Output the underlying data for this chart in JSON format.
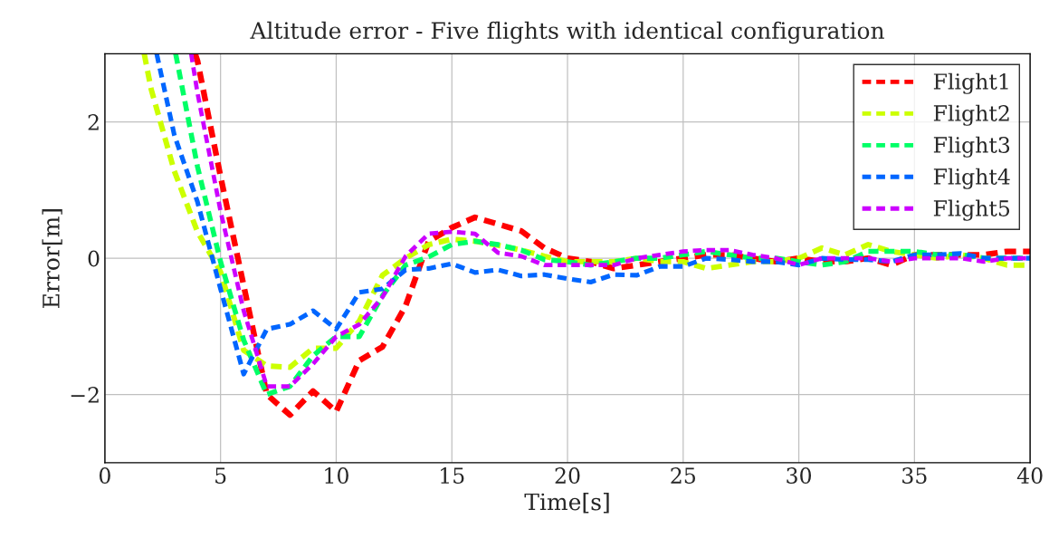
{
  "chart_data": {
    "type": "line",
    "title": "Altitude error - Five flights with identical configuration",
    "xlabel": "Time[s]",
    "ylabel": "Error[m]",
    "xlim": [
      0,
      40
    ],
    "ylim": [
      -3,
      3
    ],
    "xticks": [
      0,
      5,
      10,
      15,
      20,
      25,
      30,
      35,
      40
    ],
    "yticks": [
      {
        "value": -2,
        "label": "−2"
      },
      0,
      2
    ],
    "grid": true,
    "legend": "top right",
    "line_style": "dashed",
    "series": [
      {
        "name": "Flight1",
        "color": "#ff0000",
        "x": [
          3.9,
          4,
          5,
          6,
          7,
          8,
          9,
          10,
          11,
          12,
          13,
          14,
          15,
          16,
          17,
          18,
          19,
          20,
          21,
          22,
          23,
          24,
          25,
          26,
          27,
          28,
          29,
          30,
          31,
          32,
          33,
          34,
          35,
          36,
          37,
          38,
          39,
          40
        ],
        "values": [
          3,
          2.9,
          1.2,
          -0.4,
          -2.0,
          -2.3,
          -1.95,
          -2.25,
          -1.5,
          -1.3,
          -0.7,
          0.25,
          0.45,
          0.6,
          0.5,
          0.4,
          0.15,
          0.0,
          -0.05,
          -0.15,
          -0.1,
          -0.05,
          0.0,
          0.05,
          0.05,
          0.0,
          -0.05,
          0.0,
          -0.05,
          -0.05,
          0.0,
          -0.1,
          0.05,
          0.05,
          0.05,
          0.05,
          0.1,
          0.1
        ]
      },
      {
        "name": "Flight2",
        "color": "#ccff00",
        "x": [
          1.7,
          2,
          3,
          4,
          5,
          6,
          7,
          8,
          9,
          10,
          11,
          12,
          13,
          14,
          15,
          16,
          17,
          18,
          19,
          20,
          21,
          22,
          23,
          24,
          25,
          26,
          27,
          28,
          29,
          30,
          31,
          32,
          33,
          34,
          35,
          36,
          37,
          38,
          39,
          40
        ],
        "values": [
          3,
          2.48,
          1.28,
          0.39,
          -0.2,
          -1.35,
          -1.58,
          -1.6,
          -1.32,
          -1.32,
          -0.92,
          -0.25,
          0.0,
          0.2,
          0.28,
          0.25,
          0.19,
          0.12,
          0.03,
          -0.05,
          -0.05,
          -0.05,
          0.0,
          -0.05,
          -0.05,
          -0.15,
          -0.1,
          -0.05,
          -0.05,
          0.0,
          0.15,
          0.05,
          0.2,
          0.1,
          0.05,
          0.0,
          0.05,
          0.0,
          -0.1,
          -0.1
        ]
      },
      {
        "name": "Flight3",
        "color": "#00ff66",
        "x": [
          3.06,
          4,
          5,
          6,
          7,
          8,
          9,
          10,
          11,
          12,
          13,
          14,
          15,
          16,
          17,
          18,
          19,
          20,
          21,
          22,
          23,
          24,
          25,
          26,
          27,
          28,
          29,
          30,
          31,
          32,
          33,
          34,
          35,
          36,
          37,
          38,
          39,
          40
        ],
        "values": [
          3,
          1.35,
          -0.05,
          -1.2,
          -2.0,
          -1.88,
          -1.43,
          -1.15,
          -1.15,
          -0.55,
          -0.1,
          0.02,
          0.2,
          0.25,
          0.2,
          0.12,
          -0.02,
          -0.05,
          -0.1,
          -0.05,
          0.0,
          0.0,
          0.05,
          0.1,
          0.05,
          0.0,
          0.0,
          -0.05,
          -0.1,
          -0.05,
          0.1,
          0.1,
          0.1,
          0.05,
          0.05,
          0.0,
          0.0,
          0.0
        ]
      },
      {
        "name": "Flight4",
        "color": "#0066ff",
        "x": [
          2.24,
          3,
          4,
          5,
          6,
          7,
          8,
          9,
          10,
          11,
          12,
          13,
          14,
          15,
          16,
          17,
          18,
          19,
          20,
          21,
          22,
          23,
          24,
          25,
          26,
          27,
          28,
          29,
          30,
          31,
          32,
          33,
          34,
          35,
          36,
          37,
          38,
          39,
          40
        ],
        "values": [
          3,
          1.81,
          0.83,
          -0.45,
          -1.7,
          -1.04,
          -0.97,
          -0.77,
          -1.04,
          -0.5,
          -0.45,
          -0.17,
          -0.15,
          -0.08,
          -0.21,
          -0.17,
          -0.26,
          -0.24,
          -0.3,
          -0.35,
          -0.24,
          -0.25,
          -0.12,
          -0.12,
          0.0,
          -0.02,
          -0.05,
          -0.05,
          -0.1,
          0.0,
          -0.02,
          -0.02,
          -0.05,
          0.05,
          0.05,
          0.07,
          0.0,
          0.0,
          0.0
        ]
      },
      {
        "name": "Flight5",
        "color": "#cc00ff",
        "x": [
          3.73,
          4,
          5,
          6,
          7,
          8,
          9,
          10,
          11,
          12,
          13,
          14,
          15,
          16,
          17,
          18,
          19,
          20,
          21,
          22,
          23,
          24,
          25,
          26,
          27,
          28,
          29,
          30,
          31,
          32,
          33,
          34,
          35,
          36,
          37,
          38,
          39,
          40
        ],
        "values": [
          3,
          2.43,
          0.69,
          -0.77,
          -1.88,
          -1.88,
          -1.55,
          -1.15,
          -0.97,
          -0.57,
          0.03,
          0.36,
          0.39,
          0.36,
          0.08,
          0.03,
          -0.1,
          -0.1,
          -0.1,
          -0.1,
          0.0,
          0.05,
          0.1,
          0.12,
          0.12,
          0.05,
          0.0,
          -0.1,
          0.0,
          0.0,
          0.0,
          -0.05,
          0.0,
          0.0,
          0.0,
          -0.05,
          0.0,
          0.0
        ]
      }
    ]
  }
}
